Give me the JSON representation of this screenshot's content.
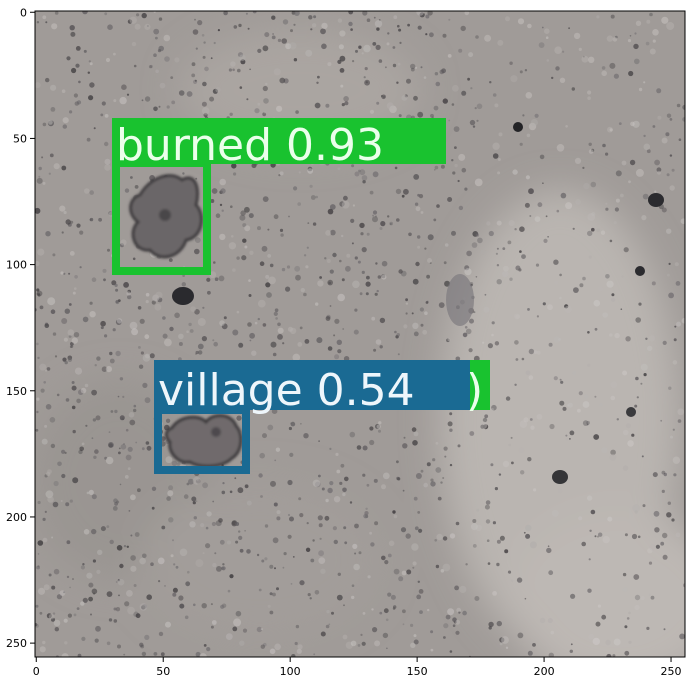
{
  "x_ticks": [
    "0",
    "50",
    "100",
    "150",
    "200",
    "250"
  ],
  "y_ticks": [
    "0",
    "50",
    "100",
    "150",
    "200",
    "250"
  ],
  "detections": [
    {
      "label": "burned",
      "score": "0.93",
      "text": "burned 0.93",
      "color": "#19c22f"
    },
    {
      "label": "village",
      "score": "0.54",
      "text": "village 0.54",
      "color": "#1a6a93"
    }
  ],
  "colors": {
    "terrain_base": "#a09b98",
    "terrain_light": "#b8b3b0",
    "terrain_dark": "#5e5a5b",
    "burned_box": "#19c22f",
    "village_box": "#1a6a93"
  }
}
